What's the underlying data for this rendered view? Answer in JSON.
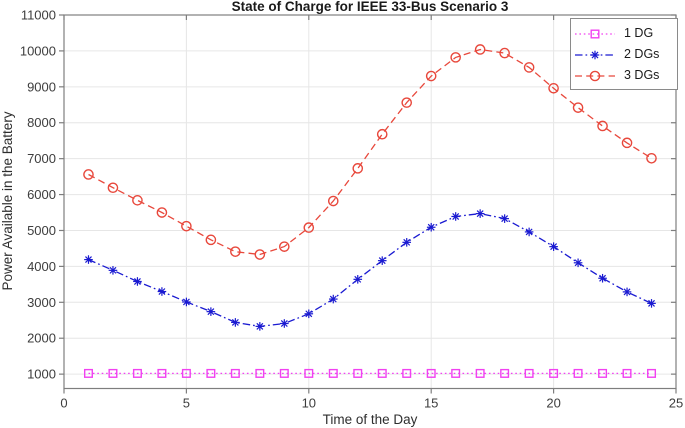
{
  "chart_data": {
    "type": "line",
    "title": "State of Charge for IEEE 33-Bus Scenario 3",
    "xlabel": "Time of the Day",
    "ylabel": "Power Available in the Battery",
    "xlim": [
      0,
      25
    ],
    "ylim": [
      600,
      11000
    ],
    "xticks": [
      0,
      5,
      10,
      15,
      20,
      25
    ],
    "yticks": [
      1000,
      2000,
      3000,
      4000,
      5000,
      6000,
      7000,
      8000,
      9000,
      10000,
      11000
    ],
    "grid": true,
    "legend_position": "top-right",
    "x": [
      1,
      2,
      3,
      4,
      5,
      6,
      7,
      8,
      9,
      10,
      11,
      12,
      13,
      14,
      15,
      16,
      17,
      18,
      19,
      20,
      21,
      22,
      23,
      24
    ],
    "series": [
      {
        "name": "1 DG",
        "color": "#f141f1",
        "line_style": "dotted",
        "marker": "square",
        "values": [
          1020,
          1020,
          1020,
          1020,
          1020,
          1020,
          1020,
          1020,
          1020,
          1020,
          1020,
          1020,
          1020,
          1020,
          1020,
          1020,
          1020,
          1020,
          1020,
          1020,
          1020,
          1020,
          1020,
          1020
        ]
      },
      {
        "name": "2 DGs",
        "color": "#1a1ad1",
        "line_style": "dash-dot",
        "marker": "asterisk",
        "values": [
          4190,
          3890,
          3580,
          3300,
          3010,
          2740,
          2440,
          2330,
          2410,
          2680,
          3090,
          3640,
          4160,
          4670,
          5090,
          5390,
          5470,
          5330,
          4960,
          4550,
          4100,
          3670,
          3290,
          2970
        ]
      },
      {
        "name": "3 DGs",
        "color": "#e8483c",
        "line_style": "dashed",
        "marker": "circle",
        "values": [
          6560,
          6190,
          5840,
          5500,
          5120,
          4740,
          4410,
          4330,
          4550,
          5080,
          5820,
          6730,
          7680,
          8560,
          9300,
          9820,
          10040,
          9940,
          9540,
          8960,
          8420,
          7910,
          7440,
          7010
        ]
      }
    ],
    "axis_color": "#7e7e7e",
    "grid_color": "#e6e6e6"
  }
}
